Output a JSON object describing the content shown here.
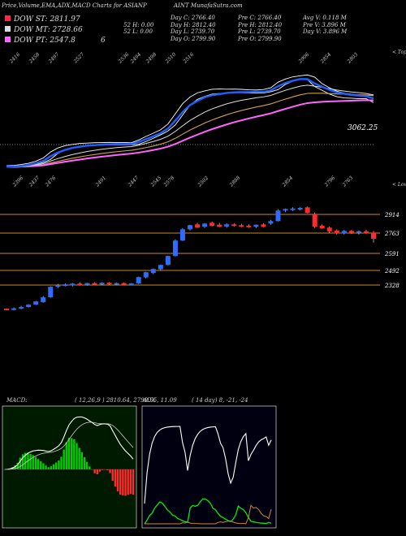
{
  "header": {
    "left_title": "Price,Volume,EMA,ADX,MACD Charts for ASIANP",
    "right_title": "AINT MunafaSutra.com"
  },
  "legend": {
    "st": "DOW ST: 2811.97",
    "mt": "DOW MT: 2728.66",
    "pt": "DOW PT: 2547.8",
    "pt_extra": "6",
    "colors": {
      "st": "#ff2a4a",
      "mt": "#dddddd",
      "pt": "#ff66ff"
    }
  },
  "stats": {
    "col1": [
      "",
      "52 H: 0.00",
      "52 L: 0.00"
    ],
    "col2": [
      "Day C: 2766.40",
      "Day H: 2812.40",
      "Day L: 2739.70",
      "Day O: 2799.90"
    ],
    "col3": [
      "Pre C: 2766.40",
      "Pre H: 2812.40",
      "Pre L: 2739.70",
      "Pre O: 2799.90"
    ],
    "col4": [
      "Avg V: 0.118 M",
      "Pre V: 3.896 M",
      "Day V: 3.896 M"
    ]
  },
  "ema_panel": {
    "last_value_label": "3062.25",
    "corner_top": "< Tops",
    "corner_bottom": "< Lows",
    "top_labels": [
      "2416",
      "2458",
      "2497",
      "2527",
      "2536",
      "2494",
      "2498",
      "2510",
      "2516",
      "2906",
      "2854",
      "2803"
    ],
    "bottom_labels": [
      "2396",
      "2437",
      "2476",
      "2491",
      "2447",
      "2545",
      "2578",
      "2502",
      "2888",
      "2854",
      "2796",
      "2763"
    ],
    "colors": {
      "price": "#ffffff",
      "ema_fast": "#1f5eff",
      "ema_mid": "#dddddd",
      "ema_slow": "#ff66ff",
      "ema_gold": "#d4a04a"
    }
  },
  "candle_panel": {
    "price_levels": [
      "2914",
      "2763",
      "2591",
      "2492",
      "2328"
    ]
  },
  "macd_panel": {
    "title": "MACD:",
    "params": "( 12,26,9 ) 2810.64,  2799.55,  11.09"
  },
  "adx_panel": {
    "title": "ADX",
    "params": "( 14  day) 8,  -21,  -24"
  },
  "chart_data": {
    "type": "candlestick",
    "title": "Price,Volume,EMA,ADX,MACD Charts for ASIANPAINT",
    "price_levels": [
      2914,
      2763,
      2591,
      2492,
      2328
    ],
    "last_close": 2766.4,
    "indicators": {
      "DOW_ST": 2811.97,
      "DOW_MT": 2728.66,
      "DOW_PT": 2547.86,
      "MACD": [
        2810.64,
        2799.55,
        11.09
      ],
      "ADX": [
        8,
        -21,
        -24
      ]
    },
    "candles": [
      {
        "o": 2330,
        "h": 2335,
        "l": 2325,
        "c": 2328
      },
      {
        "o": 2330,
        "h": 2340,
        "l": 2322,
        "c": 2332
      },
      {
        "o": 2335,
        "h": 2350,
        "l": 2330,
        "c": 2340
      },
      {
        "o": 2345,
        "h": 2360,
        "l": 2340,
        "c": 2355
      },
      {
        "o": 2360,
        "h": 2380,
        "l": 2355,
        "c": 2375
      },
      {
        "o": 2375,
        "h": 2410,
        "l": 2370,
        "c": 2400
      },
      {
        "o": 2405,
        "h": 2470,
        "l": 2400,
        "c": 2465
      },
      {
        "o": 2470,
        "h": 2485,
        "l": 2460,
        "c": 2475
      },
      {
        "o": 2478,
        "h": 2488,
        "l": 2470,
        "c": 2480
      },
      {
        "o": 2478,
        "h": 2490,
        "l": 2470,
        "c": 2485
      },
      {
        "o": 2485,
        "h": 2495,
        "l": 2475,
        "c": 2480
      },
      {
        "o": 2482,
        "h": 2492,
        "l": 2475,
        "c": 2488
      },
      {
        "o": 2488,
        "h": 2495,
        "l": 2478,
        "c": 2482
      },
      {
        "o": 2484,
        "h": 2495,
        "l": 2478,
        "c": 2490
      },
      {
        "o": 2490,
        "h": 2496,
        "l": 2480,
        "c": 2485
      },
      {
        "o": 2485,
        "h": 2494,
        "l": 2478,
        "c": 2488
      },
      {
        "o": 2488,
        "h": 2494,
        "l": 2480,
        "c": 2482
      },
      {
        "o": 2483,
        "h": 2490,
        "l": 2478,
        "c": 2486
      },
      {
        "o": 2490,
        "h": 2530,
        "l": 2485,
        "c": 2525
      },
      {
        "o": 2528,
        "h": 2560,
        "l": 2520,
        "c": 2555
      },
      {
        "o": 2555,
        "h": 2580,
        "l": 2545,
        "c": 2575
      },
      {
        "o": 2578,
        "h": 2605,
        "l": 2570,
        "c": 2600
      },
      {
        "o": 2605,
        "h": 2660,
        "l": 2600,
        "c": 2655
      },
      {
        "o": 2660,
        "h": 2760,
        "l": 2655,
        "c": 2750
      },
      {
        "o": 2755,
        "h": 2830,
        "l": 2750,
        "c": 2820
      },
      {
        "o": 2825,
        "h": 2850,
        "l": 2815,
        "c": 2845
      },
      {
        "o": 2850,
        "h": 2862,
        "l": 2830,
        "c": 2835
      },
      {
        "o": 2840,
        "h": 2860,
        "l": 2830,
        "c": 2855
      },
      {
        "o": 2860,
        "h": 2870,
        "l": 2840,
        "c": 2845
      },
      {
        "o": 2848,
        "h": 2862,
        "l": 2835,
        "c": 2840
      },
      {
        "o": 2842,
        "h": 2858,
        "l": 2832,
        "c": 2850
      },
      {
        "o": 2850,
        "h": 2860,
        "l": 2838,
        "c": 2845
      },
      {
        "o": 2845,
        "h": 2856,
        "l": 2835,
        "c": 2842
      },
      {
        "o": 2842,
        "h": 2852,
        "l": 2832,
        "c": 2838
      },
      {
        "o": 2840,
        "h": 2852,
        "l": 2830,
        "c": 2848
      },
      {
        "o": 2850,
        "h": 2860,
        "l": 2835,
        "c": 2840
      },
      {
        "o": 2860,
        "h": 2880,
        "l": 2850,
        "c": 2870
      },
      {
        "o": 2875,
        "h": 2945,
        "l": 2870,
        "c": 2935
      },
      {
        "o": 2940,
        "h": 2950,
        "l": 2928,
        "c": 2945
      },
      {
        "o": 2945,
        "h": 2958,
        "l": 2935,
        "c": 2948
      },
      {
        "o": 2948,
        "h": 2958,
        "l": 2940,
        "c": 2952
      },
      {
        "o": 2955,
        "h": 2962,
        "l": 2920,
        "c": 2925
      },
      {
        "o": 2915,
        "h": 2925,
        "l": 2830,
        "c": 2840
      },
      {
        "o": 2842,
        "h": 2852,
        "l": 2825,
        "c": 2830
      },
      {
        "o": 2830,
        "h": 2840,
        "l": 2800,
        "c": 2812
      },
      {
        "o": 2812,
        "h": 2822,
        "l": 2790,
        "c": 2800
      },
      {
        "o": 2800,
        "h": 2818,
        "l": 2790,
        "c": 2810
      },
      {
        "o": 2810,
        "h": 2818,
        "l": 2795,
        "c": 2802
      },
      {
        "o": 2805,
        "h": 2815,
        "l": 2790,
        "c": 2808
      },
      {
        "o": 2808,
        "h": 2818,
        "l": 2795,
        "c": 2800
      },
      {
        "o": 2799.9,
        "h": 2812.4,
        "l": 2739.7,
        "c": 2766.4
      }
    ]
  }
}
